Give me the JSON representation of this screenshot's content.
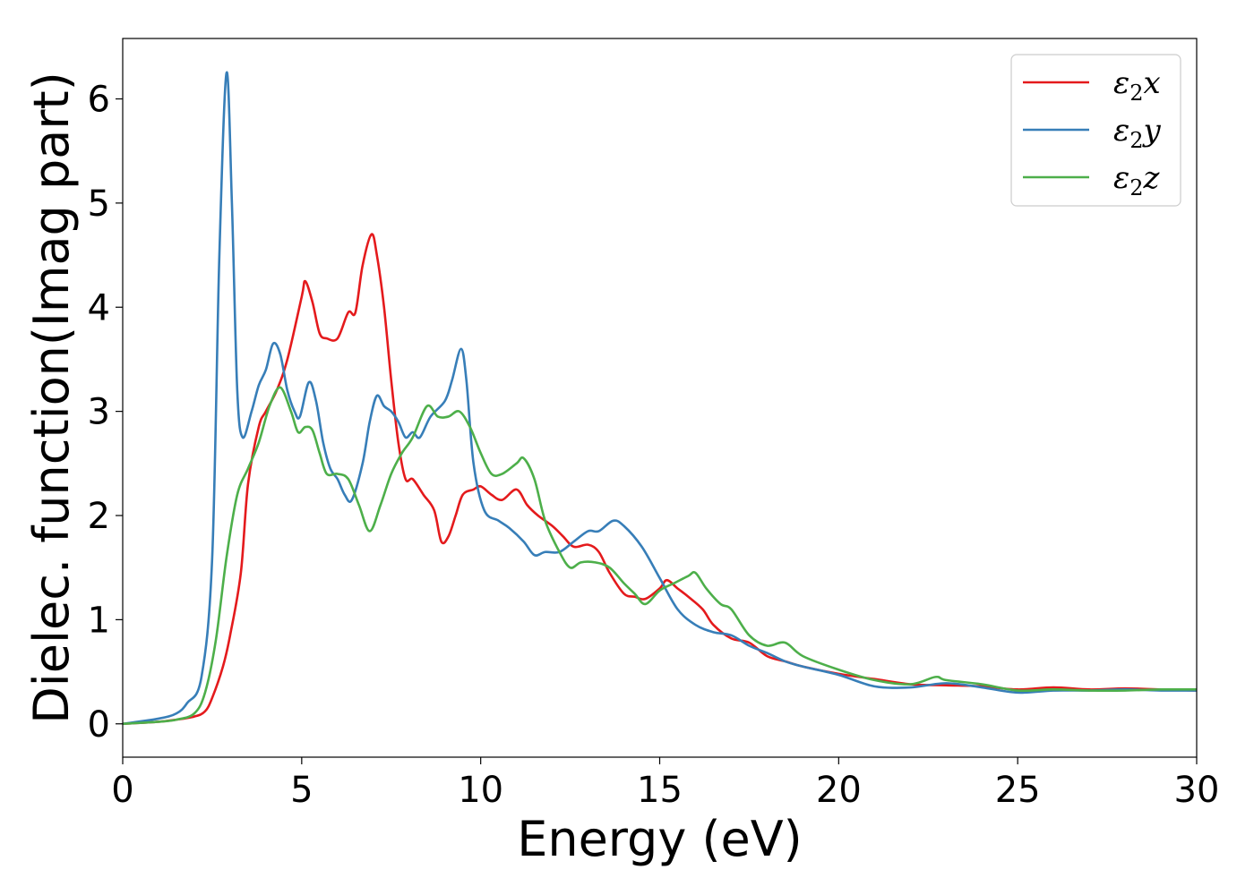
{
  "chart_data": {
    "type": "line",
    "title": "",
    "xlabel": "Energy (eV)",
    "ylabel": "Dielec. function(Imag part)",
    "xlim": [
      0,
      30
    ],
    "ylim": [
      -0.32,
      6.58
    ],
    "xticks": [
      0,
      5,
      10,
      15,
      20,
      25,
      30
    ],
    "yticks": [
      0,
      1,
      2,
      3,
      4,
      5,
      6
    ],
    "grid": false,
    "legend_position": "top-right",
    "series": [
      {
        "name": "x",
        "color": "#e41a1c",
        "points": [
          [
            0,
            0
          ],
          [
            1,
            0.02
          ],
          [
            1.5,
            0.04
          ],
          [
            2,
            0.07
          ],
          [
            2.3,
            0.12
          ],
          [
            2.5,
            0.25
          ],
          [
            2.8,
            0.55
          ],
          [
            3,
            0.85
          ],
          [
            3.3,
            1.45
          ],
          [
            3.5,
            2.3
          ],
          [
            3.8,
            2.85
          ],
          [
            4,
            3.0
          ],
          [
            4.3,
            3.2
          ],
          [
            4.6,
            3.5
          ],
          [
            5.0,
            4.1
          ],
          [
            5.1,
            4.25
          ],
          [
            5.3,
            4.05
          ],
          [
            5.5,
            3.75
          ],
          [
            5.7,
            3.7
          ],
          [
            6.0,
            3.7
          ],
          [
            6.3,
            3.95
          ],
          [
            6.5,
            3.95
          ],
          [
            6.7,
            4.4
          ],
          [
            6.95,
            4.7
          ],
          [
            7.1,
            4.5
          ],
          [
            7.3,
            4.0
          ],
          [
            7.5,
            3.3
          ],
          [
            7.7,
            2.7
          ],
          [
            7.9,
            2.35
          ],
          [
            8.1,
            2.35
          ],
          [
            8.4,
            2.2
          ],
          [
            8.7,
            2.05
          ],
          [
            8.9,
            1.75
          ],
          [
            9.1,
            1.8
          ],
          [
            9.3,
            2.0
          ],
          [
            9.5,
            2.2
          ],
          [
            9.8,
            2.25
          ],
          [
            10.0,
            2.28
          ],
          [
            10.3,
            2.2
          ],
          [
            10.6,
            2.15
          ],
          [
            11.0,
            2.25
          ],
          [
            11.3,
            2.1
          ],
          [
            11.6,
            2.0
          ],
          [
            12.0,
            1.9
          ],
          [
            12.3,
            1.8
          ],
          [
            12.6,
            1.7
          ],
          [
            13.0,
            1.72
          ],
          [
            13.3,
            1.65
          ],
          [
            13.6,
            1.45
          ],
          [
            14.0,
            1.25
          ],
          [
            14.3,
            1.22
          ],
          [
            14.6,
            1.2
          ],
          [
            15.0,
            1.3
          ],
          [
            15.2,
            1.38
          ],
          [
            15.5,
            1.3
          ],
          [
            15.8,
            1.22
          ],
          [
            16.2,
            1.1
          ],
          [
            16.5,
            0.95
          ],
          [
            17.0,
            0.82
          ],
          [
            17.5,
            0.78
          ],
          [
            18.0,
            0.65
          ],
          [
            18.5,
            0.6
          ],
          [
            19.0,
            0.55
          ],
          [
            20.0,
            0.48
          ],
          [
            21.0,
            0.43
          ],
          [
            22.0,
            0.38
          ],
          [
            23.0,
            0.37
          ],
          [
            24.0,
            0.36
          ],
          [
            25.0,
            0.33
          ],
          [
            26.0,
            0.35
          ],
          [
            27.0,
            0.33
          ],
          [
            28.0,
            0.34
          ],
          [
            29.0,
            0.33
          ],
          [
            30.0,
            0.32
          ]
        ]
      },
      {
        "name": "y",
        "color": "#377eb8",
        "points": [
          [
            0,
            0
          ],
          [
            1,
            0.05
          ],
          [
            1.5,
            0.1
          ],
          [
            1.8,
            0.2
          ],
          [
            2.2,
            0.45
          ],
          [
            2.5,
            1.6
          ],
          [
            2.7,
            4.5
          ],
          [
            2.9,
            6.25
          ],
          [
            3.05,
            5.0
          ],
          [
            3.2,
            3.2
          ],
          [
            3.35,
            2.75
          ],
          [
            3.6,
            3.0
          ],
          [
            3.8,
            3.25
          ],
          [
            4.0,
            3.4
          ],
          [
            4.2,
            3.65
          ],
          [
            4.4,
            3.55
          ],
          [
            4.6,
            3.2
          ],
          [
            4.8,
            3.0
          ],
          [
            4.95,
            2.95
          ],
          [
            5.2,
            3.28
          ],
          [
            5.4,
            3.1
          ],
          [
            5.6,
            2.7
          ],
          [
            5.8,
            2.45
          ],
          [
            6.0,
            2.35
          ],
          [
            6.2,
            2.2
          ],
          [
            6.4,
            2.15
          ],
          [
            6.7,
            2.5
          ],
          [
            6.9,
            2.9
          ],
          [
            7.1,
            3.15
          ],
          [
            7.3,
            3.05
          ],
          [
            7.5,
            3.0
          ],
          [
            7.7,
            2.9
          ],
          [
            7.9,
            2.75
          ],
          [
            8.1,
            2.8
          ],
          [
            8.3,
            2.75
          ],
          [
            8.6,
            2.95
          ],
          [
            9.0,
            3.1
          ],
          [
            9.2,
            3.3
          ],
          [
            9.45,
            3.6
          ],
          [
            9.6,
            3.3
          ],
          [
            9.8,
            2.5
          ],
          [
            10.1,
            2.05
          ],
          [
            10.5,
            1.95
          ],
          [
            10.8,
            1.88
          ],
          [
            11.2,
            1.75
          ],
          [
            11.5,
            1.62
          ],
          [
            11.8,
            1.65
          ],
          [
            12.2,
            1.65
          ],
          [
            12.6,
            1.75
          ],
          [
            13.0,
            1.85
          ],
          [
            13.3,
            1.85
          ],
          [
            13.7,
            1.95
          ],
          [
            14.0,
            1.9
          ],
          [
            14.5,
            1.7
          ],
          [
            15.0,
            1.4
          ],
          [
            15.5,
            1.1
          ],
          [
            16.0,
            0.95
          ],
          [
            16.5,
            0.88
          ],
          [
            17.0,
            0.85
          ],
          [
            17.5,
            0.75
          ],
          [
            18.0,
            0.68
          ],
          [
            18.5,
            0.6
          ],
          [
            19.0,
            0.55
          ],
          [
            20.0,
            0.47
          ],
          [
            21.0,
            0.36
          ],
          [
            22.0,
            0.35
          ],
          [
            23.0,
            0.39
          ],
          [
            24.0,
            0.35
          ],
          [
            25.0,
            0.3
          ],
          [
            26.0,
            0.32
          ],
          [
            27.0,
            0.32
          ],
          [
            28.0,
            0.33
          ],
          [
            29.0,
            0.32
          ],
          [
            30.0,
            0.32
          ]
        ]
      },
      {
        "name": "z",
        "color": "#4daf4a",
        "points": [
          [
            0,
            0
          ],
          [
            1,
            0.02
          ],
          [
            1.5,
            0.04
          ],
          [
            2,
            0.1
          ],
          [
            2.3,
            0.3
          ],
          [
            2.6,
            0.8
          ],
          [
            2.9,
            1.6
          ],
          [
            3.2,
            2.2
          ],
          [
            3.5,
            2.45
          ],
          [
            3.8,
            2.7
          ],
          [
            4.1,
            3.05
          ],
          [
            4.4,
            3.23
          ],
          [
            4.7,
            3.0
          ],
          [
            4.9,
            2.8
          ],
          [
            5.1,
            2.85
          ],
          [
            5.3,
            2.82
          ],
          [
            5.5,
            2.6
          ],
          [
            5.7,
            2.4
          ],
          [
            6.0,
            2.4
          ],
          [
            6.3,
            2.35
          ],
          [
            6.6,
            2.1
          ],
          [
            6.9,
            1.85
          ],
          [
            7.2,
            2.1
          ],
          [
            7.5,
            2.4
          ],
          [
            7.8,
            2.6
          ],
          [
            8.1,
            2.75
          ],
          [
            8.5,
            3.05
          ],
          [
            8.8,
            2.95
          ],
          [
            9.1,
            2.95
          ],
          [
            9.4,
            3.0
          ],
          [
            9.7,
            2.85
          ],
          [
            10.0,
            2.6
          ],
          [
            10.3,
            2.4
          ],
          [
            10.6,
            2.4
          ],
          [
            11.0,
            2.5
          ],
          [
            11.2,
            2.55
          ],
          [
            11.5,
            2.35
          ],
          [
            11.8,
            1.95
          ],
          [
            12.2,
            1.65
          ],
          [
            12.5,
            1.5
          ],
          [
            12.8,
            1.55
          ],
          [
            13.2,
            1.55
          ],
          [
            13.6,
            1.5
          ],
          [
            14.0,
            1.35
          ],
          [
            14.3,
            1.25
          ],
          [
            14.6,
            1.15
          ],
          [
            15.0,
            1.28
          ],
          [
            15.4,
            1.35
          ],
          [
            15.8,
            1.42
          ],
          [
            16.0,
            1.45
          ],
          [
            16.3,
            1.3
          ],
          [
            16.7,
            1.15
          ],
          [
            17.0,
            1.1
          ],
          [
            17.5,
            0.85
          ],
          [
            18.0,
            0.75
          ],
          [
            18.5,
            0.78
          ],
          [
            19.0,
            0.65
          ],
          [
            20.0,
            0.52
          ],
          [
            21.0,
            0.42
          ],
          [
            22.0,
            0.38
          ],
          [
            22.7,
            0.45
          ],
          [
            23.0,
            0.42
          ],
          [
            24.0,
            0.38
          ],
          [
            25.0,
            0.32
          ],
          [
            26.0,
            0.33
          ],
          [
            27.0,
            0.32
          ],
          [
            28.0,
            0.32
          ],
          [
            29.0,
            0.33
          ],
          [
            30.0,
            0.33
          ]
        ]
      }
    ]
  }
}
